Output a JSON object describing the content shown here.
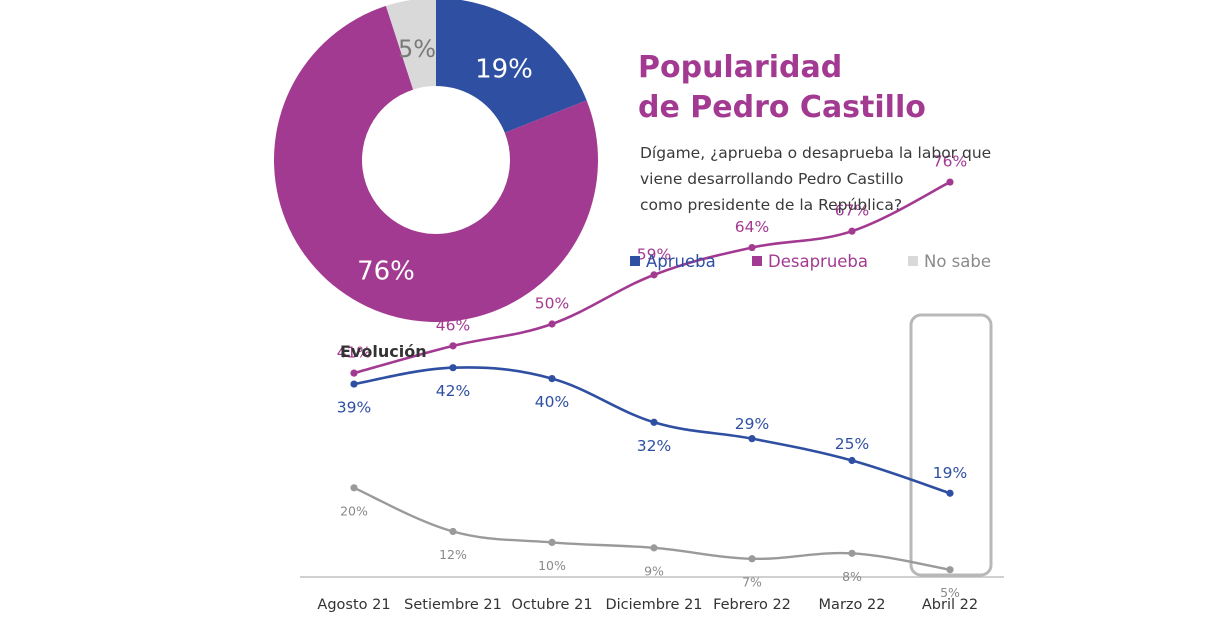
{
  "colors": {
    "aprueba": "#2f4fa2",
    "desaprueba": "#a33a92",
    "no_sabe": "#d9d9d9",
    "no_sabe_line": "#9a9a9a",
    "highlight_box": "#b8b8b8",
    "axis": "#b5b5b5"
  },
  "header": {
    "title_line1": "Popularidad",
    "title_line2": "de Pedro Castillo",
    "question_line1": "Dígame, ¿aprueba o desaprueba la labor que",
    "question_line2": "viene desarrollando Pedro Castillo",
    "question_line3": "como presidente de la República?"
  },
  "legend": [
    {
      "label": "Aprueba",
      "color": "#2f4fa2"
    },
    {
      "label": "Desaprueba",
      "color": "#a33a92"
    },
    {
      "label": "No sabe",
      "color": "#d9d9d9"
    }
  ],
  "chart_data": [
    {
      "type": "pie",
      "variant": "donut",
      "slices": [
        {
          "name": "Aprueba",
          "value": 19,
          "label": "19%",
          "color": "#2f4fa2"
        },
        {
          "name": "Desaprueba",
          "value": 76,
          "label": "76%",
          "color": "#a33a92"
        },
        {
          "name": "No sabe",
          "value": 5,
          "label": "5%",
          "color": "#d9d9d9"
        }
      ]
    },
    {
      "type": "line",
      "subtitle": "Evolución",
      "categories": [
        "Agosto 21",
        "Setiembre 21",
        "Octubre 21",
        "Diciembre 21",
        "Febrero 22",
        "Marzo 22",
        "Abril 22"
      ],
      "series": [
        {
          "name": "Desaprueba",
          "color": "#a33a92",
          "values": [
            41,
            46,
            50,
            59,
            64,
            67,
            76
          ],
          "labels": [
            "41%",
            "46%",
            "50%",
            "59%",
            "64%",
            "67%",
            "76%"
          ]
        },
        {
          "name": "Aprueba",
          "color": "#2f4fa2",
          "values": [
            39,
            42,
            40,
            32,
            29,
            25,
            19
          ],
          "labels": [
            "39%",
            "42%",
            "40%",
            "32%",
            "29%",
            "25%",
            "19%"
          ]
        },
        {
          "name": "No sabe",
          "color": "#9a9a9a",
          "values": [
            20,
            12,
            10,
            9,
            7,
            8,
            5
          ],
          "labels": [
            "20%",
            "12%",
            "10%",
            "9%",
            "7%",
            "8%",
            "5%"
          ]
        }
      ],
      "highlight": "Abril 22",
      "grid": false,
      "yaxis_visible": false
    }
  ]
}
